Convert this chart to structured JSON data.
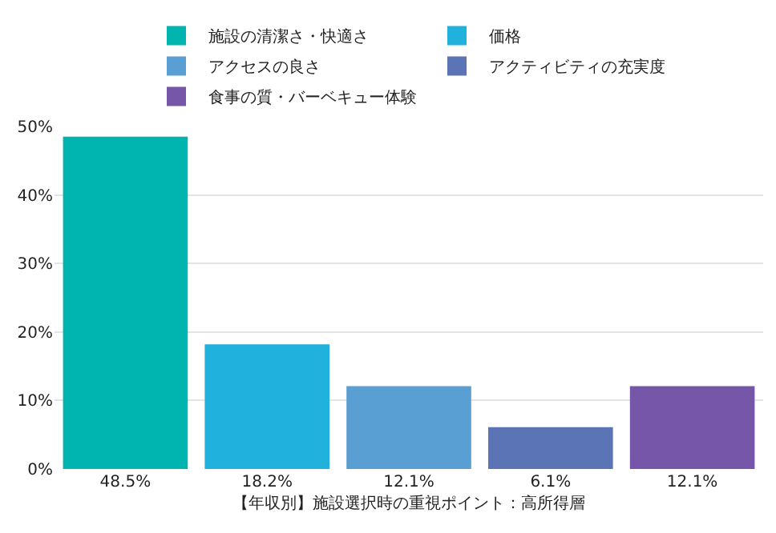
{
  "chart_data": {
    "type": "bar",
    "categories": [
      null,
      null,
      null,
      null,
      null
    ],
    "series": [
      {
        "name": "施設の清潔さ・快適さ",
        "color": "#00b5b0",
        "values": [
          48.5,
          null,
          null,
          null,
          null
        ],
        "value_labels": [
          "48.5%",
          null,
          null,
          null,
          null
        ]
      },
      {
        "name": "価格",
        "color": "#20b2dc",
        "values": [
          null,
          18.2,
          null,
          null,
          null
        ],
        "value_labels": [
          null,
          "18.2%",
          null,
          null,
          null
        ]
      },
      {
        "name": "アクセスの良さ",
        "color": "#5a9fd4",
        "values": [
          null,
          null,
          12.1,
          null,
          null
        ],
        "value_labels": [
          null,
          null,
          "12.1%",
          null,
          null
        ]
      },
      {
        "name": "アクティビティの充実度",
        "color": "#5b74b5",
        "values": [
          null,
          null,
          null,
          6.1,
          null
        ],
        "value_labels": [
          null,
          null,
          null,
          "6.1%",
          null
        ]
      },
      {
        "name": "食事の質・バーベキュー体験",
        "color": "#7656a8",
        "values": [
          null,
          null,
          null,
          null,
          12.1
        ],
        "value_labels": [
          null,
          null,
          null,
          null,
          "12.1%"
        ]
      }
    ],
    "xlabel": "【年収別】施設選択時の重視ポイント：高所得層",
    "ylim": [
      0,
      50
    ],
    "yticks": [
      {
        "value": 0,
        "label": "0%"
      },
      {
        "value": 10,
        "label": "10%"
      },
      {
        "value": 20,
        "label": "20%"
      },
      {
        "value": 30,
        "label": "30%"
      },
      {
        "value": 40,
        "label": "40%"
      },
      {
        "value": 50,
        "label": "50%"
      }
    ],
    "grid": "y",
    "legend": "top"
  }
}
